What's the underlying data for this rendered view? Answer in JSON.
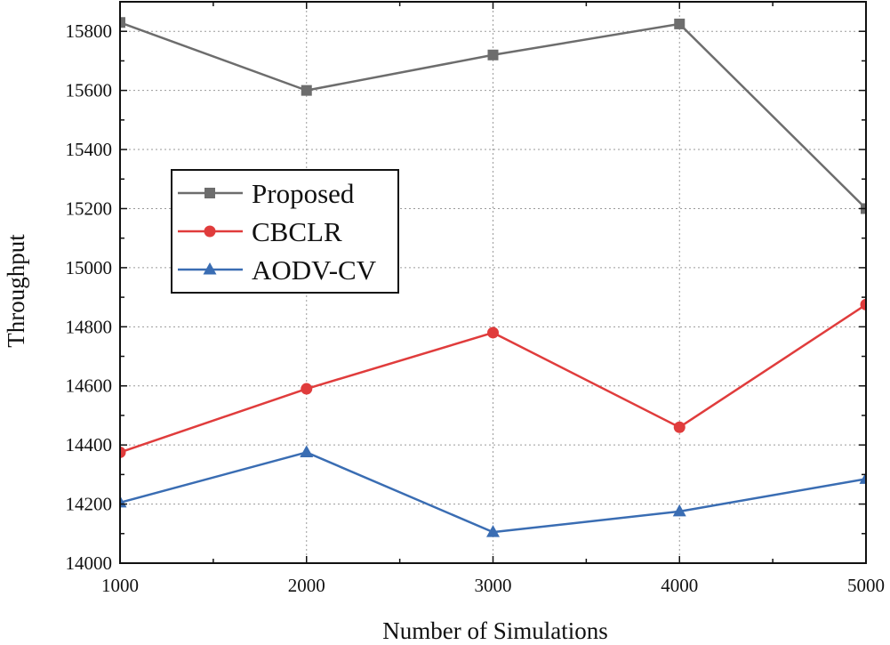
{
  "chart_data": {
    "type": "line",
    "title": "",
    "xlabel": "Number of Simulations",
    "ylabel": "Throughput",
    "x": [
      1000,
      2000,
      3000,
      4000,
      5000
    ],
    "xlim": [
      1000,
      5000
    ],
    "ylim": [
      14000,
      15900
    ],
    "xticks": [
      1000,
      2000,
      3000,
      4000,
      5000
    ],
    "yticks": [
      14000,
      14200,
      14400,
      14600,
      14800,
      15000,
      15200,
      15400,
      15600,
      15800
    ],
    "grid": true,
    "legend_position": "upper-left",
    "series": [
      {
        "name": "Proposed",
        "color": "#6d6d6d",
        "marker": "square",
        "values": [
          15830,
          15600,
          15720,
          15825,
          15200
        ]
      },
      {
        "name": "CBCLR",
        "color": "#e03c3c",
        "marker": "circle",
        "values": [
          14375,
          14590,
          14780,
          14460,
          14875
        ]
      },
      {
        "name": "AODV-CV",
        "color": "#3a6db3",
        "marker": "triangle",
        "values": [
          14205,
          14375,
          14105,
          14175,
          14285
        ]
      }
    ]
  }
}
